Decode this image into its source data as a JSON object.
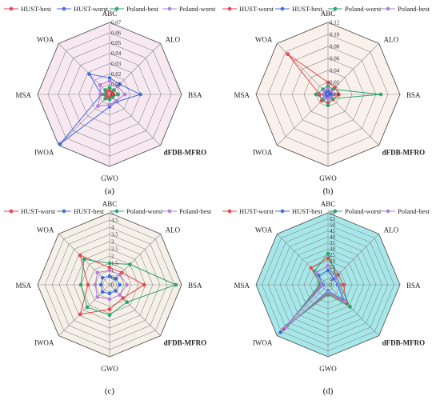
{
  "chart_data": [
    {
      "type": "radar",
      "panel_label": "(a)",
      "axes": [
        "ABC",
        "ALO",
        "BSA",
        "dFDB-MFRO",
        "GWO",
        "IWOA",
        "MSA",
        "WOA"
      ],
      "ticks": [
        "0",
        "0.01",
        "0.02",
        "0.03",
        "0.04",
        "0.05",
        "0.06",
        "0.07"
      ],
      "rmax": 0.07,
      "fill": "#f8e8f2",
      "series": [
        {
          "name": "HUST-best",
          "color": "#e8454b",
          "values": [
            0.004,
            0.003,
            0.004,
            0.002,
            0.003,
            0.004,
            0.003,
            0.004
          ]
        },
        {
          "name": "HUST-worst",
          "color": "#3f6fd8",
          "values": [
            0.016,
            0.014,
            0.03,
            0.01,
            0.012,
            0.068,
            0.008,
            0.028
          ]
        },
        {
          "name": "Poland-best",
          "color": "#2ea36b",
          "values": [
            0.007,
            0.006,
            0.008,
            0.004,
            0.005,
            0.006,
            0.005,
            0.006
          ]
        },
        {
          "name": "Poland-worst",
          "color": "#b07fd8",
          "values": [
            0.013,
            0.011,
            0.015,
            0.009,
            0.01,
            0.016,
            0.009,
            0.013
          ]
        }
      ]
    },
    {
      "type": "radar",
      "panel_label": "(b)",
      "axes": [
        "ABC",
        "ALO",
        "BSA",
        "dFDB-MFRO",
        "GWO",
        "IWOA",
        "MSA",
        "WOA"
      ],
      "ticks": [
        "0.00",
        "0.02",
        "0.04",
        "0.06",
        "0.08",
        "0.10",
        "0.12"
      ],
      "rmax": 0.12,
      "fill": "#faf1ec",
      "series": [
        {
          "name": "HUST-worst",
          "color": "#e8454b",
          "values": [
            0.02,
            0.016,
            0.018,
            0.012,
            0.014,
            0.015,
            0.014,
            0.095
          ]
        },
        {
          "name": "HUST-best",
          "color": "#3f6fd8",
          "values": [
            0.005,
            0.004,
            0.005,
            0.003,
            0.004,
            0.005,
            0.004,
            0.005
          ]
        },
        {
          "name": "Poland-worst",
          "color": "#2ea36b",
          "values": [
            0.014,
            0.012,
            0.088,
            0.01,
            0.018,
            0.011,
            0.02,
            0.012
          ]
        },
        {
          "name": "Poland-best",
          "color": "#b07fd8",
          "values": [
            0.01,
            0.008,
            0.01,
            0.006,
            0.008,
            0.008,
            0.008,
            0.009
          ]
        }
      ]
    },
    {
      "type": "radar",
      "panel_label": "(c)",
      "axes": [
        "ABC",
        "ALO",
        "BSA",
        "dFDB-MFRO",
        "GWO",
        "IWOA",
        "MSA",
        "WOA"
      ],
      "ticks": [
        "0",
        "0.5",
        "1",
        "1.5",
        "2",
        "2.5",
        "3",
        "3.5",
        "4",
        "4.5",
        "5"
      ],
      "rmax": 5,
      "fill": "#f6f1e8",
      "series": [
        {
          "name": "HUST-worst",
          "color": "#e8454b",
          "values": [
            1.2,
            1.2,
            2.4,
            1.3,
            1.7,
            2.9,
            1.5,
            2.9
          ]
        },
        {
          "name": "HUST-best",
          "color": "#3f6fd8",
          "values": [
            0.6,
            0.6,
            0.7,
            0.6,
            0.6,
            0.7,
            0.6,
            0.7
          ]
        },
        {
          "name": "Poland-worst",
          "color": "#2ea36b",
          "values": [
            1.5,
            2.0,
            4.6,
            1.7,
            2.1,
            2.2,
            2.0,
            2.5
          ]
        },
        {
          "name": "Poland-best",
          "color": "#b07fd8",
          "values": [
            1.0,
            1.0,
            1.2,
            1.0,
            1.0,
            1.2,
            1.0,
            1.2
          ]
        }
      ]
    },
    {
      "type": "radar",
      "panel_label": "(d)",
      "axes": [
        "ABC",
        "ALO",
        "BSA",
        "dFDB-MFRO",
        "GWO",
        "IWOA",
        "MSA",
        "WOA"
      ],
      "ticks": [
        "0",
        "5",
        "10",
        "15",
        "20",
        "25",
        "30",
        "35",
        "40",
        "45",
        "50",
        "55",
        "60"
      ],
      "rmax": 60,
      "fill": "#a6e8ea",
      "series": [
        {
          "name": "HUST-worst",
          "color": "#e8454b",
          "values": [
            22,
            12,
            13,
            22,
            7,
            52,
            6,
            20
          ]
        },
        {
          "name": "HUST-best",
          "color": "#3f6fd8",
          "values": [
            12,
            7,
            8,
            18,
            5,
            56,
            4,
            11
          ]
        },
        {
          "name": "Poland-worst",
          "color": "#2ea36b",
          "values": [
            26,
            10,
            10,
            26,
            8,
            48,
            7,
            16
          ]
        },
        {
          "name": "Poland-best",
          "color": "#b07fd8",
          "values": [
            16,
            9,
            9,
            20,
            6,
            50,
            5,
            14
          ]
        }
      ]
    }
  ]
}
